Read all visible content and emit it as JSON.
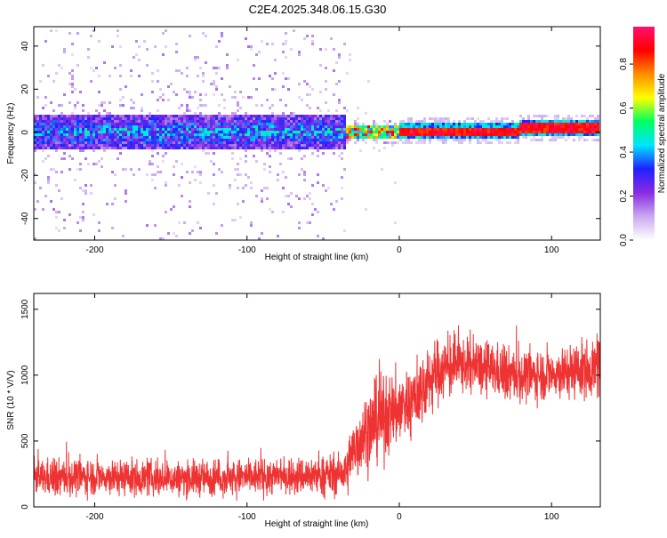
{
  "title": "C2E4.2025.348.06.15.G30",
  "chart_data": [
    {
      "type": "heatmap",
      "title": "C2E4.2025.348.06.15.G30",
      "xlabel": "Height of straight line (km)",
      "ylabel": "Frequency (Hz)",
      "xlim": [
        -240,
        132
      ],
      "ylim": [
        -50,
        49
      ],
      "xticks": [
        -200,
        -100,
        0,
        100
      ],
      "yticks": [
        -40,
        -20,
        0,
        20,
        40
      ],
      "colorbar": {
        "label": "Normalized spectral amplitude",
        "range": [
          0,
          0.97
        ],
        "ticks": [
          0.0,
          0.2,
          0.4,
          0.6,
          0.8
        ],
        "tick_labels": [
          "0.0",
          "0.2",
          "0.4",
          "0.6",
          "0.8"
        ],
        "colormap": [
          "#ffffff",
          "#c9a8f0",
          "#8a2be2",
          "#2020ff",
          "#00e5ff",
          "#00ff60",
          "#ffff00",
          "#ff8c00",
          "#ff0000",
          "#ff1070"
        ]
      },
      "regions": [
        {
          "name": "noisy",
          "x_range": [
            -240,
            -35
          ],
          "center_freq": 0,
          "spread_hz": 49,
          "core_hz": 8,
          "peak_amplitude": 0.35
        },
        {
          "name": "transition",
          "x_range": [
            -35,
            0
          ],
          "center_freq": 0,
          "core_hz": 3,
          "peak_amplitude": 0.9
        },
        {
          "name": "stable",
          "x_range": [
            0,
            132
          ],
          "center_freq": 0.5,
          "core_hz": 2,
          "peak_amplitude": 0.95
        }
      ]
    },
    {
      "type": "line",
      "xlabel": "Height of straight line (km)",
      "ylabel": "SNR (10 * V/V)",
      "xlim": [
        -240,
        132
      ],
      "ylim": [
        0,
        1620
      ],
      "xticks": [
        -200,
        -100,
        0,
        100
      ],
      "yticks": [
        0,
        500,
        1000,
        1500
      ],
      "series": [
        {
          "name": "SNR",
          "color": "#ee3333",
          "x": [
            -240,
            -200,
            -150,
            -100,
            -50,
            -35,
            -30,
            -25,
            -20,
            -10,
            0,
            10,
            25,
            40,
            60,
            80,
            100,
            120,
            132
          ],
          "y": [
            220,
            230,
            215,
            225,
            240,
            250,
            420,
            540,
            600,
            680,
            750,
            820,
            1030,
            1080,
            1040,
            990,
            1010,
            1040,
            1060
          ],
          "spread": [
            150,
            150,
            145,
            150,
            160,
            170,
            300,
            320,
            330,
            330,
            320,
            300,
            270,
            240,
            220,
            210,
            210,
            230,
            250
          ]
        }
      ]
    }
  ]
}
